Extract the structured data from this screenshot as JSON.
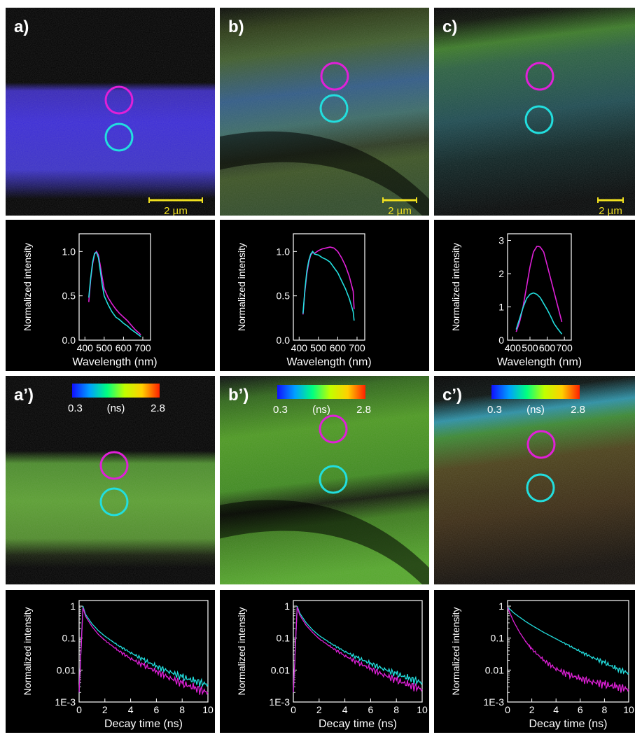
{
  "colors": {
    "magenta": "#e020d8",
    "cyan": "#22dede",
    "scalebar": "#f0e020",
    "axis": "#ffffff",
    "text": "#ffffff"
  },
  "panel_labels": [
    "a)",
    "b)",
    "c)",
    "a’)",
    "b’)",
    "c’)"
  ],
  "scalebar_label": "2 µm",
  "colorbar": {
    "min_label": "0.3",
    "unit_label": "(ns)",
    "max_label": "2.8"
  },
  "chart_data": [
    {
      "panel": "a)",
      "type": "line",
      "xlabel": "Wavelength (nm)",
      "ylabel": "Normalized intensity",
      "xlim": [
        370,
        740
      ],
      "ylim": [
        0,
        1.2
      ],
      "xticks": [
        400,
        500,
        600,
        700
      ],
      "yticks": [
        0.0,
        0.5,
        1.0
      ],
      "xtick_labels": [
        "400",
        "500",
        "600",
        "700"
      ],
      "ytick_labels": [
        "0.0",
        "0.5",
        "1.0"
      ],
      "series": [
        {
          "color": "magenta",
          "x": [
            420,
            430,
            440,
            450,
            460,
            470,
            480,
            490,
            500,
            520,
            540,
            560,
            580,
            600,
            620,
            640,
            660,
            690
          ],
          "y": [
            0.43,
            0.68,
            0.86,
            0.97,
            1.0,
            0.96,
            0.84,
            0.7,
            0.58,
            0.48,
            0.41,
            0.35,
            0.3,
            0.26,
            0.22,
            0.17,
            0.12,
            0.06
          ]
        },
        {
          "color": "cyan",
          "x": [
            420,
            430,
            440,
            450,
            460,
            470,
            480,
            490,
            500,
            520,
            540,
            560,
            580,
            600,
            620,
            640,
            660,
            690
          ],
          "y": [
            0.48,
            0.7,
            0.88,
            0.98,
            0.99,
            0.93,
            0.78,
            0.62,
            0.5,
            0.4,
            0.32,
            0.26,
            0.23,
            0.19,
            0.16,
            0.12,
            0.09,
            0.04
          ]
        }
      ]
    },
    {
      "panel": "b)",
      "type": "line",
      "xlabel": "Wavelength (nm)",
      "ylabel": "Normalized intensity",
      "xlim": [
        370,
        740
      ],
      "ylim": [
        0,
        1.2
      ],
      "xticks": [
        400,
        500,
        600,
        700
      ],
      "yticks": [
        0.0,
        0.5,
        1.0
      ],
      "xtick_labels": [
        "400",
        "500",
        "600",
        "700"
      ],
      "ytick_labels": [
        "0.0",
        "0.5",
        "1.0"
      ],
      "series": [
        {
          "color": "magenta",
          "x": [
            420,
            430,
            440,
            450,
            460,
            470,
            480,
            500,
            520,
            540,
            560,
            580,
            600,
            620,
            640,
            660,
            680,
            685
          ],
          "y": [
            0.29,
            0.55,
            0.75,
            0.88,
            0.96,
            0.99,
            0.98,
            1.01,
            1.03,
            1.04,
            1.05,
            1.04,
            1.0,
            0.93,
            0.84,
            0.72,
            0.55,
            0.35
          ]
        },
        {
          "color": "cyan",
          "x": [
            420,
            430,
            440,
            450,
            460,
            470,
            480,
            500,
            520,
            540,
            560,
            580,
            600,
            620,
            640,
            660,
            680,
            685
          ],
          "y": [
            0.3,
            0.57,
            0.78,
            0.9,
            0.97,
            1.0,
            0.97,
            0.96,
            0.93,
            0.91,
            0.88,
            0.82,
            0.76,
            0.67,
            0.58,
            0.47,
            0.32,
            0.22
          ]
        }
      ]
    },
    {
      "panel": "c)",
      "type": "line",
      "xlabel": "Wavelength (nm)",
      "ylabel": "Normalized intensity",
      "xlim": [
        370,
        740
      ],
      "ylim": [
        0,
        3.2
      ],
      "xticks": [
        400,
        500,
        600,
        700
      ],
      "yticks": [
        0,
        1,
        2,
        3
      ],
      "xtick_labels": [
        "400",
        "500",
        "600",
        "700"
      ],
      "ytick_labels": [
        "0",
        "1",
        "2",
        "3"
      ],
      "series": [
        {
          "color": "magenta",
          "x": [
            420,
            440,
            460,
            480,
            500,
            520,
            540,
            550,
            560,
            580,
            600,
            620,
            640,
            660,
            685
          ],
          "y": [
            0.25,
            0.55,
            1.0,
            1.6,
            2.2,
            2.65,
            2.82,
            2.82,
            2.8,
            2.65,
            2.25,
            1.85,
            1.45,
            1.05,
            0.55
          ]
        },
        {
          "color": "cyan",
          "x": [
            420,
            440,
            460,
            480,
            500,
            520,
            540,
            560,
            580,
            600,
            620,
            640,
            660,
            685
          ],
          "y": [
            0.32,
            0.65,
            0.98,
            1.25,
            1.38,
            1.42,
            1.38,
            1.28,
            1.1,
            0.92,
            0.72,
            0.5,
            0.35,
            0.18
          ]
        }
      ]
    },
    {
      "panel": "a’)",
      "type": "line",
      "yscale": "log",
      "xlabel": "Decay time (ns)",
      "ylabel": "Normalized intensity",
      "xlim": [
        0,
        10
      ],
      "ylim": [
        0.001,
        1.5
      ],
      "xticks": [
        0,
        2,
        4,
        6,
        8,
        10
      ],
      "yticks": [
        0.001,
        0.01,
        0.1,
        1
      ],
      "xtick_labels": [
        "0",
        "2",
        "4",
        "6",
        "8",
        "10"
      ],
      "ytick_labels": [
        "1E-3",
        "0.01",
        "0.1",
        "1"
      ],
      "series": [
        {
          "color": "cyan",
          "x": [
            0,
            0.3,
            0.5,
            1,
            1.5,
            2,
            3,
            4,
            5,
            6,
            7,
            8,
            9,
            10
          ],
          "y": [
            0.002,
            1.0,
            0.55,
            0.28,
            0.17,
            0.115,
            0.06,
            0.035,
            0.021,
            0.013,
            0.009,
            0.006,
            0.0045,
            0.0035
          ]
        },
        {
          "color": "magenta",
          "x": [
            0,
            0.3,
            0.5,
            1,
            1.5,
            2,
            3,
            4,
            5,
            6,
            7,
            8,
            9,
            10
          ],
          "y": [
            0.002,
            0.9,
            0.48,
            0.23,
            0.13,
            0.085,
            0.042,
            0.023,
            0.014,
            0.009,
            0.0058,
            0.0038,
            0.0027,
            0.002
          ]
        }
      ]
    },
    {
      "panel": "b’)",
      "type": "line",
      "yscale": "log",
      "xlabel": "Decay time (ns)",
      "ylabel": "Normalized intensity",
      "xlim": [
        0,
        10
      ],
      "ylim": [
        0.001,
        1.5
      ],
      "xticks": [
        0,
        2,
        4,
        6,
        8,
        10
      ],
      "yticks": [
        0.001,
        0.01,
        0.1,
        1
      ],
      "xtick_labels": [
        "0",
        "2",
        "4",
        "6",
        "8",
        "10"
      ],
      "ytick_labels": [
        "1E-3",
        "0.01",
        "0.1",
        "1"
      ],
      "series": [
        {
          "color": "cyan",
          "x": [
            0,
            0.3,
            0.5,
            1,
            1.5,
            2,
            3,
            4,
            5,
            6,
            7,
            8,
            9,
            10
          ],
          "y": [
            0.002,
            1.0,
            0.6,
            0.3,
            0.18,
            0.12,
            0.065,
            0.038,
            0.024,
            0.016,
            0.011,
            0.0075,
            0.0055,
            0.004
          ]
        },
        {
          "color": "magenta",
          "x": [
            0,
            0.3,
            0.5,
            1,
            1.5,
            2,
            3,
            4,
            5,
            6,
            7,
            8,
            9,
            10
          ],
          "y": [
            0.002,
            0.95,
            0.52,
            0.25,
            0.15,
            0.095,
            0.05,
            0.028,
            0.017,
            0.011,
            0.0072,
            0.0048,
            0.0034,
            0.0025
          ]
        }
      ]
    },
    {
      "panel": "c’)",
      "type": "line",
      "yscale": "log",
      "xlabel": "Decay time (ns)",
      "ylabel": "Normalized intensity",
      "xlim": [
        0,
        10
      ],
      "ylim": [
        0.001,
        1.5
      ],
      "xticks": [
        0,
        2,
        4,
        6,
        8,
        10
      ],
      "yticks": [
        0.001,
        0.01,
        0.1,
        1
      ],
      "xtick_labels": [
        "0",
        "2",
        "4",
        "6",
        "8",
        "10"
      ],
      "ytick_labels": [
        "1E-3",
        "0.01",
        "0.1",
        "1"
      ],
      "series": [
        {
          "color": "cyan",
          "x": [
            0,
            0.2,
            0.5,
            1,
            1.5,
            2,
            3,
            4,
            5,
            6,
            7,
            8,
            9,
            10
          ],
          "y": [
            0.9,
            0.8,
            0.62,
            0.45,
            0.33,
            0.25,
            0.15,
            0.095,
            0.06,
            0.038,
            0.025,
            0.017,
            0.011,
            0.008
          ]
        },
        {
          "color": "magenta",
          "x": [
            0,
            0.2,
            0.5,
            1,
            1.5,
            2,
            3,
            4,
            5,
            6,
            7,
            8,
            9,
            10
          ],
          "y": [
            0.9,
            0.6,
            0.33,
            0.15,
            0.078,
            0.045,
            0.02,
            0.011,
            0.0072,
            0.0054,
            0.0043,
            0.0035,
            0.003,
            0.0025
          ]
        }
      ]
    }
  ]
}
